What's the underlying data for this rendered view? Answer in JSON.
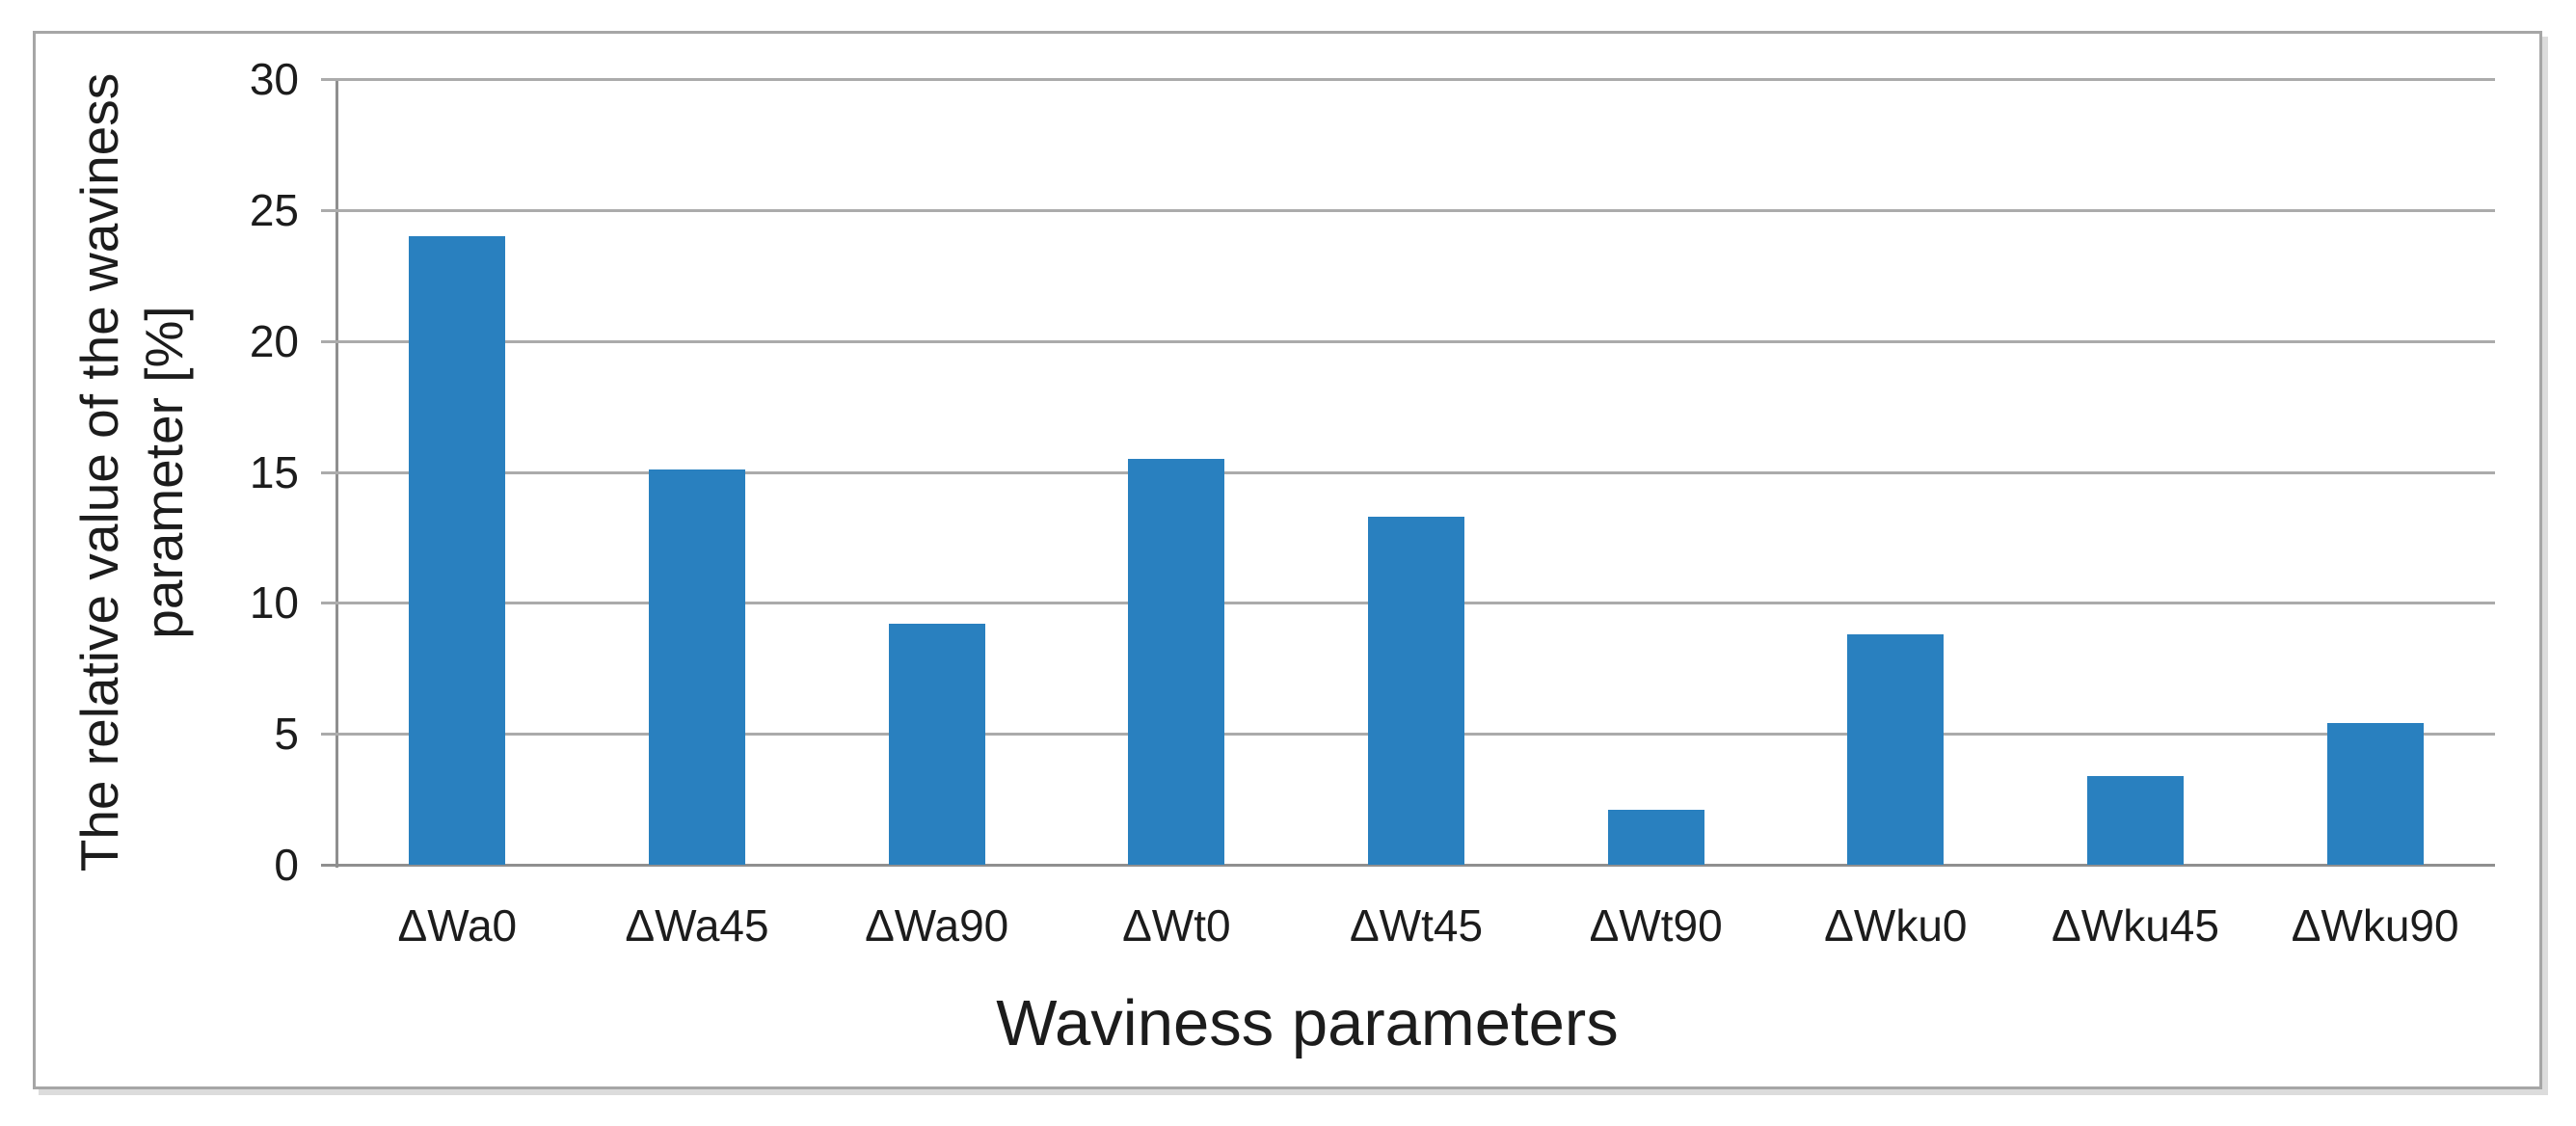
{
  "chart_data": {
    "type": "bar",
    "title": "",
    "categories": [
      "ΔWa0",
      "ΔWa45",
      "ΔWa90",
      "ΔWt0",
      "ΔWt45",
      "ΔWt90",
      "ΔWku0",
      "ΔWku45",
      "ΔWku90"
    ],
    "values": [
      24.0,
      15.1,
      9.2,
      15.5,
      13.3,
      2.1,
      8.8,
      3.4,
      5.4
    ],
    "xlabel": "Waviness parameters",
    "ylabel": "The relative value of the waviness parameter [%]",
    "ylabel_lines": [
      "The relative value of the waviness",
      "parameter [%]"
    ],
    "ylim": [
      0,
      30
    ],
    "yticks": [
      0,
      5,
      10,
      15,
      20,
      25,
      30
    ],
    "grid": "horizontal",
    "legend": "none",
    "colors": {
      "bar": "#2980bf",
      "gridline": "#ababab",
      "axis": "#8f8f8f",
      "text": "#1c1c1c",
      "frame_border": "#a6a6a6",
      "frame_shadow": "#dcdcdc",
      "background": "#ffffff"
    }
  }
}
